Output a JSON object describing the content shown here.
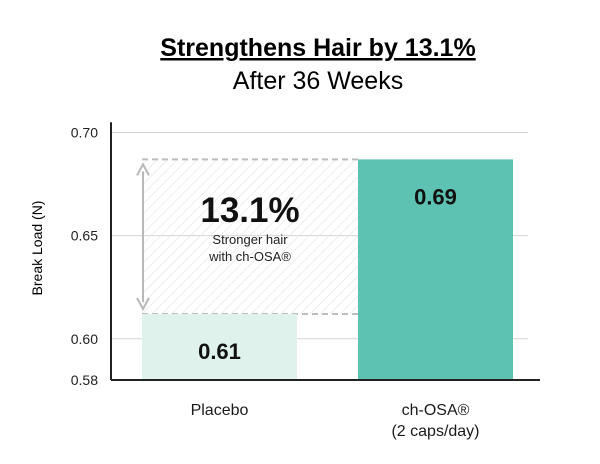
{
  "chart_data": {
    "type": "bar",
    "title": "Strengthens Hair by 13.1%",
    "subtitle": "After 36 Weeks",
    "ylabel": "Break Load (N)",
    "ylim": [
      0.58,
      0.705
    ],
    "yticks": [
      "0.70",
      "0.65",
      "0.60",
      "0.58"
    ],
    "ytick_values": [
      0.7,
      0.65,
      0.6,
      0.58
    ],
    "grid": true,
    "categories": [
      "Placebo",
      "ch-OSA®\n(2 caps/day)"
    ],
    "category_lines": [
      [
        "Placebo"
      ],
      [
        "ch-OSA®",
        "(2 caps/day)"
      ]
    ],
    "values": [
      0.612,
      0.687
    ],
    "value_labels": [
      "0.61",
      "0.69"
    ],
    "annotation": {
      "value": "13.1%",
      "line1": "Stronger hair",
      "line2": "with ch-OSA®"
    },
    "colors": {
      "placebo": "#dff2ec",
      "ch_osa": "#5ec2b2",
      "grid": "#d5d5d5",
      "axis": "#222222",
      "dashed": "#bdbdbd",
      "arrow": "#b8b8b8"
    }
  }
}
